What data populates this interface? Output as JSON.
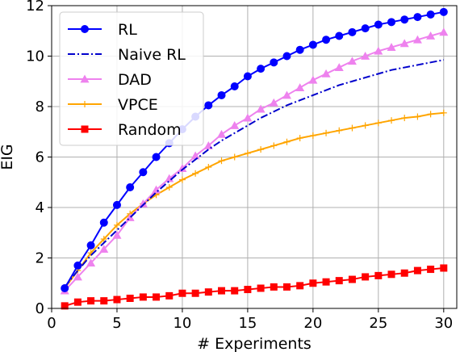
{
  "chart_data": {
    "type": "line",
    "xlabel": "# Experiments",
    "ylabel": "EIG",
    "xlim": [
      0,
      31
    ],
    "ylim": [
      0,
      12
    ],
    "xticks": [
      0,
      5,
      10,
      15,
      20,
      25,
      30
    ],
    "yticks": [
      0,
      2,
      4,
      6,
      8,
      10,
      12
    ],
    "grid": true,
    "legend_position": "top-left",
    "x": [
      1,
      2,
      3,
      4,
      5,
      6,
      7,
      8,
      9,
      10,
      11,
      12,
      13,
      14,
      15,
      16,
      17,
      18,
      19,
      20,
      21,
      22,
      23,
      24,
      25,
      26,
      27,
      28,
      29,
      30
    ],
    "series": [
      {
        "name": "RL",
        "color": "#0000ff",
        "marker": "circle",
        "linestyle": "solid",
        "values": [
          0.8,
          1.7,
          2.5,
          3.4,
          4.1,
          4.8,
          5.4,
          6.0,
          6.55,
          7.1,
          7.6,
          8.05,
          8.45,
          8.8,
          9.2,
          9.5,
          9.75,
          10.0,
          10.25,
          10.45,
          10.65,
          10.8,
          10.95,
          11.1,
          11.25,
          11.35,
          11.45,
          11.55,
          11.65,
          11.75
        ]
      },
      {
        "name": "Naive RL",
        "color": "#0000cc",
        "marker": "none",
        "linestyle": "dashdot",
        "values": [
          0.85,
          1.5,
          2.1,
          2.6,
          3.1,
          3.6,
          4.1,
          4.6,
          5.05,
          5.5,
          5.9,
          6.3,
          6.65,
          6.95,
          7.25,
          7.55,
          7.8,
          8.05,
          8.25,
          8.45,
          8.65,
          8.85,
          9.0,
          9.15,
          9.3,
          9.45,
          9.55,
          9.65,
          9.75,
          9.85
        ]
      },
      {
        "name": "DAD",
        "color": "#ee82ee",
        "marker": "triangle",
        "linestyle": "solid",
        "values": [
          0.7,
          1.25,
          1.8,
          2.35,
          2.9,
          3.6,
          4.15,
          4.7,
          5.15,
          5.55,
          6.05,
          6.45,
          6.9,
          7.25,
          7.55,
          7.9,
          8.15,
          8.45,
          8.75,
          9.05,
          9.3,
          9.55,
          9.8,
          10.0,
          10.2,
          10.35,
          10.5,
          10.65,
          10.8,
          10.95
        ]
      },
      {
        "name": "VPCE",
        "color": "#ffa500",
        "marker": "plus",
        "linestyle": "solid",
        "values": [
          0.8,
          1.5,
          2.2,
          2.75,
          3.3,
          3.75,
          4.15,
          4.5,
          4.8,
          5.1,
          5.35,
          5.6,
          5.85,
          6.0,
          6.15,
          6.3,
          6.45,
          6.6,
          6.75,
          6.85,
          6.95,
          7.05,
          7.15,
          7.25,
          7.35,
          7.45,
          7.55,
          7.6,
          7.7,
          7.75
        ]
      },
      {
        "name": "Random",
        "color": "#ff0000",
        "marker": "square",
        "linestyle": "solid",
        "values": [
          0.1,
          0.25,
          0.3,
          0.3,
          0.35,
          0.4,
          0.45,
          0.45,
          0.5,
          0.6,
          0.6,
          0.65,
          0.7,
          0.7,
          0.75,
          0.8,
          0.85,
          0.85,
          0.9,
          1.0,
          1.05,
          1.1,
          1.15,
          1.25,
          1.3,
          1.35,
          1.4,
          1.5,
          1.55,
          1.6
        ]
      }
    ]
  }
}
